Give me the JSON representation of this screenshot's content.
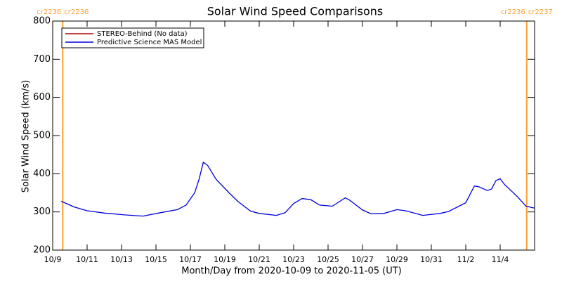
{
  "chart_data": {
    "type": "line",
    "title": "Solar Wind Speed Comparisons",
    "x_label": "Month/Day from 2020-10-09 to 2020-11-05 (UT)",
    "y_label": "Solar Wind Speed (km/s)",
    "legend": "upper left",
    "x": [
      "2020-10-09T12:00",
      "2020-10-10T06:00",
      "2020-10-11T00:00",
      "2020-10-12T00:00",
      "2020-10-13T06:00",
      "2020-10-14T06:00",
      "2020-10-15T06:00",
      "2020-10-16T06:00",
      "2020-10-16T18:00",
      "2020-10-17T06:00",
      "2020-10-17T12:00",
      "2020-10-17T18:00",
      "2020-10-18T00:00",
      "2020-10-18T12:00",
      "2020-10-19T06:00",
      "2020-10-19T18:00",
      "2020-10-20T12:00",
      "2020-10-21T00:00",
      "2020-10-22T00:00",
      "2020-10-22T12:00",
      "2020-10-23T00:00",
      "2020-10-23T12:00",
      "2020-10-24T00:00",
      "2020-10-24T12:00",
      "2020-10-25T06:00",
      "2020-10-26T00:00",
      "2020-10-26T06:00",
      "2020-10-27T00:00",
      "2020-10-27T12:00",
      "2020-10-28T06:00",
      "2020-10-29T00:00",
      "2020-10-29T12:00",
      "2020-10-30T12:00",
      "2020-10-31T12:00",
      "2020-11-01T00:00",
      "2020-11-02T00:00",
      "2020-11-02T12:00",
      "2020-11-02T18:00",
      "2020-11-03T06:00",
      "2020-11-03T12:00",
      "2020-11-03T18:00",
      "2020-11-04T00:00",
      "2020-11-04T06:00",
      "2020-11-05T00:00",
      "2020-11-05T12:00",
      "2020-11-06T00:00"
    ],
    "series": [
      {
        "name": "STEREO-Behind (No data)",
        "color": "#b00000",
        "values": [
          null,
          null,
          null,
          null,
          null,
          null,
          null,
          null,
          null,
          null,
          null,
          null,
          null,
          null,
          null,
          null,
          null,
          null,
          null,
          null,
          null,
          null,
          null,
          null,
          null,
          null,
          null,
          null,
          null,
          null,
          null,
          null,
          null,
          null,
          null,
          null,
          null,
          null,
          null,
          null,
          null,
          null,
          null,
          null,
          null,
          null
        ]
      },
      {
        "name": "Predictive Science MAS Model",
        "color": "#0000e0",
        "values": [
          328,
          313,
          303,
          297,
          292,
          289,
          298,
          306,
          318,
          350,
          385,
          430,
          422,
          385,
          350,
          328,
          302,
          296,
          291,
          298,
          322,
          335,
          332,
          318,
          315,
          337,
          331,
          305,
          295,
          296,
          306,
          303,
          291,
          296,
          301,
          324,
          368,
          366,
          356,
          360,
          382,
          387,
          372,
          340,
          315,
          310
        ]
      }
    ],
    "xlim": [
      "2020-10-09T00:00",
      "2020-11-06T00:00"
    ],
    "xticks": [
      {
        "value": "2020-10-09T00:00",
        "label": "10/9"
      },
      {
        "value": "2020-10-11T00:00",
        "label": "10/11"
      },
      {
        "value": "2020-10-13T00:00",
        "label": "10/13"
      },
      {
        "value": "2020-10-15T00:00",
        "label": "10/15"
      },
      {
        "value": "2020-10-17T00:00",
        "label": "10/17"
      },
      {
        "value": "2020-10-19T00:00",
        "label": "10/19"
      },
      {
        "value": "2020-10-21T00:00",
        "label": "10/21"
      },
      {
        "value": "2020-10-23T00:00",
        "label": "10/23"
      },
      {
        "value": "2020-10-25T00:00",
        "label": "10/25"
      },
      {
        "value": "2020-10-27T00:00",
        "label": "10/27"
      },
      {
        "value": "2020-10-29T00:00",
        "label": "10/29"
      },
      {
        "value": "2020-10-31T00:00",
        "label": "10/31"
      },
      {
        "value": "2020-11-02T00:00",
        "label": "11/2"
      },
      {
        "value": "2020-11-04T00:00",
        "label": "11/4"
      }
    ],
    "ylim": [
      200,
      800
    ],
    "yticks": [
      200,
      300,
      400,
      500,
      600,
      700,
      800
    ],
    "markers": [
      {
        "x": "2020-10-09T14:00",
        "color": "#ffa030",
        "left_label": "cr2236",
        "right_label": "cr2236"
      },
      {
        "x": "2020-11-05T13:00",
        "color": "#ffa030",
        "left_label": "cr2236",
        "right_label": "cr2237"
      }
    ]
  }
}
